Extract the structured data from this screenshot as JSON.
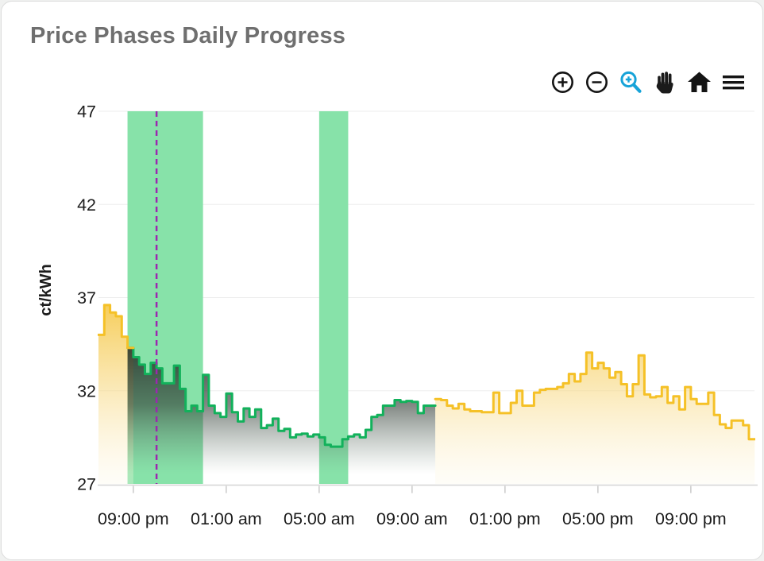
{
  "card": {
    "title": "Price Phases Daily Progress"
  },
  "toolbar": {
    "icons": [
      "zoom-in-icon",
      "zoom-out-icon",
      "box-zoom-icon",
      "pan-hand-icon",
      "home-icon",
      "menu-icon"
    ],
    "active_color": "#17a3d8",
    "icon_color": "#141414"
  },
  "chart_data": {
    "type": "area",
    "subtype": "step-after",
    "title": "Price Phases Daily Progress",
    "xlabel": "",
    "ylabel": "ct/kWh",
    "ylim": [
      27,
      47
    ],
    "y_ticks": [
      27,
      32,
      37,
      42,
      47
    ],
    "x_tick_labels": [
      "09:00 pm",
      "01:00 am",
      "05:00 am",
      "09:00 am",
      "01:00 pm",
      "05:00 pm",
      "09:00 pm"
    ],
    "x_tick_times": [
      "21:00",
      "01:00",
      "05:00",
      "09:00",
      "13:00",
      "17:00",
      "21:00"
    ],
    "x_range_start": "19:30",
    "x_range_end": "23:45",
    "step_minutes": 15,
    "grid": "horizontal",
    "legend": "none",
    "highlight_bands": [
      {
        "start": "20:45",
        "end": "00:00"
      },
      {
        "start": "05:00",
        "end": "06:15"
      }
    ],
    "now_line": {
      "time": "22:00"
    },
    "colors": {
      "standard_line": "#F5C127",
      "standard_fill_top": "rgba(245,198,65,0.9)",
      "standard_fill_mid": "rgba(247,215,125,0.6)",
      "standard_fill_bottom": "rgba(253,248,230,0.28)",
      "green_line": "#12B15B",
      "green_fill_top": "rgba(38,46,41,0.93)",
      "green_fill_mid": "rgba(52,62,55,0.62)",
      "green_fill_low": "rgba(90,110,98,0.18)",
      "green_fill_bottom": "rgba(120,150,130,0)",
      "band_fill": "#87E2A9",
      "now_line_color": "#9C27B0",
      "grid_color": "#ededed",
      "axis_line_color": "#d5d5d5",
      "tick_color": "#c9c9c9",
      "axis_text_color": "#1c1c1c"
    },
    "series": [
      {
        "time": "19:30",
        "value": 35.0,
        "phase": "standard"
      },
      {
        "time": "19:45",
        "value": 36.6,
        "phase": "standard"
      },
      {
        "time": "20:00",
        "value": 36.2,
        "phase": "standard"
      },
      {
        "time": "20:15",
        "value": 36.0,
        "phase": "standard"
      },
      {
        "time": "20:30",
        "value": 34.9,
        "phase": "standard"
      },
      {
        "time": "20:45",
        "value": 34.3,
        "phase": "standard"
      },
      {
        "time": "20:45",
        "value": 34.3,
        "phase": "green"
      },
      {
        "time": "21:00",
        "value": 33.8,
        "phase": "green"
      },
      {
        "time": "21:15",
        "value": 33.4,
        "phase": "green"
      },
      {
        "time": "21:30",
        "value": 32.9,
        "phase": "green"
      },
      {
        "time": "21:45",
        "value": 33.5,
        "phase": "green"
      },
      {
        "time": "22:00",
        "value": 33.2,
        "phase": "green"
      },
      {
        "time": "22:15",
        "value": 32.4,
        "phase": "green"
      },
      {
        "time": "22:30",
        "value": 32.4,
        "phase": "green"
      },
      {
        "time": "22:45",
        "value": 33.35,
        "phase": "green"
      },
      {
        "time": "23:00",
        "value": 32.1,
        "phase": "green"
      },
      {
        "time": "23:15",
        "value": 30.9,
        "phase": "green"
      },
      {
        "time": "23:30",
        "value": 31.2,
        "phase": "green"
      },
      {
        "time": "23:45",
        "value": 30.9,
        "phase": "green"
      },
      {
        "time": "00:00",
        "value": 32.85,
        "phase": "green"
      },
      {
        "time": "00:15",
        "value": 31.2,
        "phase": "green"
      },
      {
        "time": "00:30",
        "value": 30.8,
        "phase": "green"
      },
      {
        "time": "00:45",
        "value": 30.6,
        "phase": "green"
      },
      {
        "time": "01:00",
        "value": 31.85,
        "phase": "green"
      },
      {
        "time": "01:15",
        "value": 30.85,
        "phase": "green"
      },
      {
        "time": "01:30",
        "value": 30.35,
        "phase": "green"
      },
      {
        "time": "01:45",
        "value": 31.05,
        "phase": "green"
      },
      {
        "time": "02:00",
        "value": 30.6,
        "phase": "green"
      },
      {
        "time": "02:15",
        "value": 31.0,
        "phase": "green"
      },
      {
        "time": "02:30",
        "value": 30.0,
        "phase": "green"
      },
      {
        "time": "02:45",
        "value": 30.15,
        "phase": "green"
      },
      {
        "time": "03:00",
        "value": 30.5,
        "phase": "green"
      },
      {
        "time": "03:15",
        "value": 29.85,
        "phase": "green"
      },
      {
        "time": "03:30",
        "value": 29.95,
        "phase": "green"
      },
      {
        "time": "03:45",
        "value": 29.5,
        "phase": "green"
      },
      {
        "time": "04:00",
        "value": 29.65,
        "phase": "green"
      },
      {
        "time": "04:15",
        "value": 29.7,
        "phase": "green"
      },
      {
        "time": "04:30",
        "value": 29.55,
        "phase": "green"
      },
      {
        "time": "04:45",
        "value": 29.65,
        "phase": "green"
      },
      {
        "time": "05:00",
        "value": 29.5,
        "phase": "green"
      },
      {
        "time": "05:15",
        "value": 29.1,
        "phase": "green"
      },
      {
        "time": "05:30",
        "value": 29.0,
        "phase": "green"
      },
      {
        "time": "05:45",
        "value": 29.0,
        "phase": "green"
      },
      {
        "time": "06:00",
        "value": 29.4,
        "phase": "green"
      },
      {
        "time": "06:15",
        "value": 29.55,
        "phase": "green"
      },
      {
        "time": "06:30",
        "value": 29.65,
        "phase": "green"
      },
      {
        "time": "06:45",
        "value": 29.5,
        "phase": "green"
      },
      {
        "time": "07:00",
        "value": 29.9,
        "phase": "green"
      },
      {
        "time": "07:15",
        "value": 30.6,
        "phase": "green"
      },
      {
        "time": "07:30",
        "value": 30.7,
        "phase": "green"
      },
      {
        "time": "07:45",
        "value": 31.2,
        "phase": "green"
      },
      {
        "time": "08:00",
        "value": 31.2,
        "phase": "green"
      },
      {
        "time": "08:15",
        "value": 31.5,
        "phase": "green"
      },
      {
        "time": "08:30",
        "value": 31.4,
        "phase": "green"
      },
      {
        "time": "08:45",
        "value": 31.45,
        "phase": "green"
      },
      {
        "time": "09:00",
        "value": 31.4,
        "phase": "green"
      },
      {
        "time": "09:15",
        "value": 30.8,
        "phase": "green"
      },
      {
        "time": "09:30",
        "value": 31.2,
        "phase": "green"
      },
      {
        "time": "09:45",
        "value": 31.2,
        "phase": "green"
      },
      {
        "time": "10:00",
        "value": 31.55,
        "phase": "standard"
      },
      {
        "time": "10:15",
        "value": 31.5,
        "phase": "standard"
      },
      {
        "time": "10:30",
        "value": 31.2,
        "phase": "standard"
      },
      {
        "time": "10:45",
        "value": 31.05,
        "phase": "standard"
      },
      {
        "time": "11:00",
        "value": 31.3,
        "phase": "standard"
      },
      {
        "time": "11:15",
        "value": 31.0,
        "phase": "standard"
      },
      {
        "time": "11:30",
        "value": 30.9,
        "phase": "standard"
      },
      {
        "time": "11:45",
        "value": 30.9,
        "phase": "standard"
      },
      {
        "time": "12:00",
        "value": 30.85,
        "phase": "standard"
      },
      {
        "time": "12:15",
        "value": 30.85,
        "phase": "standard"
      },
      {
        "time": "12:30",
        "value": 31.9,
        "phase": "standard"
      },
      {
        "time": "12:45",
        "value": 30.8,
        "phase": "standard"
      },
      {
        "time": "13:00",
        "value": 30.8,
        "phase": "standard"
      },
      {
        "time": "13:15",
        "value": 31.35,
        "phase": "standard"
      },
      {
        "time": "13:30",
        "value": 32.0,
        "phase": "standard"
      },
      {
        "time": "13:45",
        "value": 31.2,
        "phase": "standard"
      },
      {
        "time": "14:00",
        "value": 31.2,
        "phase": "standard"
      },
      {
        "time": "14:15",
        "value": 31.9,
        "phase": "standard"
      },
      {
        "time": "14:30",
        "value": 32.05,
        "phase": "standard"
      },
      {
        "time": "14:45",
        "value": 32.1,
        "phase": "standard"
      },
      {
        "time": "15:00",
        "value": 32.1,
        "phase": "standard"
      },
      {
        "time": "15:15",
        "value": 32.2,
        "phase": "standard"
      },
      {
        "time": "15:30",
        "value": 32.4,
        "phase": "standard"
      },
      {
        "time": "15:45",
        "value": 32.9,
        "phase": "standard"
      },
      {
        "time": "16:00",
        "value": 32.5,
        "phase": "standard"
      },
      {
        "time": "16:15",
        "value": 32.9,
        "phase": "standard"
      },
      {
        "time": "16:30",
        "value": 34.05,
        "phase": "standard"
      },
      {
        "time": "16:45",
        "value": 33.2,
        "phase": "standard"
      },
      {
        "time": "17:00",
        "value": 33.5,
        "phase": "standard"
      },
      {
        "time": "17:15",
        "value": 33.2,
        "phase": "standard"
      },
      {
        "time": "17:30",
        "value": 32.7,
        "phase": "standard"
      },
      {
        "time": "17:45",
        "value": 33.0,
        "phase": "standard"
      },
      {
        "time": "18:00",
        "value": 32.35,
        "phase": "standard"
      },
      {
        "time": "18:15",
        "value": 31.7,
        "phase": "standard"
      },
      {
        "time": "18:30",
        "value": 32.35,
        "phase": "standard"
      },
      {
        "time": "18:45",
        "value": 33.9,
        "phase": "standard"
      },
      {
        "time": "19:00",
        "value": 31.8,
        "phase": "standard"
      },
      {
        "time": "19:15",
        "value": 31.65,
        "phase": "standard"
      },
      {
        "time": "19:30",
        "value": 31.7,
        "phase": "standard"
      },
      {
        "time": "19:45",
        "value": 32.2,
        "phase": "standard"
      },
      {
        "time": "20:00",
        "value": 31.35,
        "phase": "standard"
      },
      {
        "time": "20:15",
        "value": 31.7,
        "phase": "standard"
      },
      {
        "time": "20:30",
        "value": 31.0,
        "phase": "standard"
      },
      {
        "time": "20:45",
        "value": 32.2,
        "phase": "standard"
      },
      {
        "time": "21:00",
        "value": 31.55,
        "phase": "standard"
      },
      {
        "time": "21:15",
        "value": 31.3,
        "phase": "standard"
      },
      {
        "time": "21:30",
        "value": 31.3,
        "phase": "standard"
      },
      {
        "time": "21:45",
        "value": 31.9,
        "phase": "standard"
      },
      {
        "time": "22:00",
        "value": 30.7,
        "phase": "standard"
      },
      {
        "time": "22:15",
        "value": 30.2,
        "phase": "standard"
      },
      {
        "time": "22:30",
        "value": 30.0,
        "phase": "standard"
      },
      {
        "time": "22:45",
        "value": 30.4,
        "phase": "standard"
      },
      {
        "time": "23:00",
        "value": 30.4,
        "phase": "standard"
      },
      {
        "time": "23:15",
        "value": 30.15,
        "phase": "standard"
      },
      {
        "time": "23:30",
        "value": 29.4,
        "phase": "standard"
      }
    ]
  }
}
